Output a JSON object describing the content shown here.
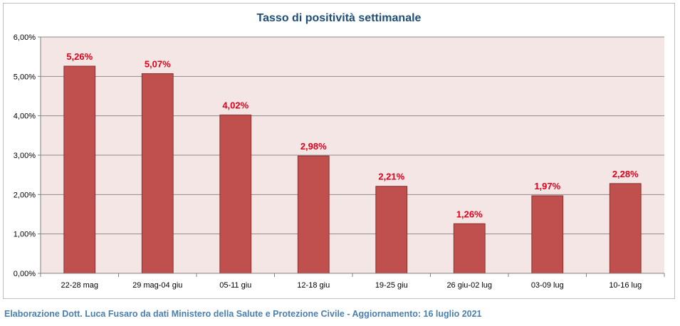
{
  "chart_data": {
    "type": "bar",
    "title": "Tasso di positività settimanale",
    "categories": [
      "22-28 mag",
      "29 mag-04 giu",
      "05-11 giu",
      "12-18 giu",
      "19-25 giu",
      "26 giu-02 lug",
      "03-09 lug",
      "10-16 lug"
    ],
    "values": [
      5.26,
      5.07,
      4.02,
      2.98,
      2.21,
      1.26,
      1.97,
      2.28
    ],
    "data_labels": [
      "5,26%",
      "5,07%",
      "4,02%",
      "2,98%",
      "2,21%",
      "1,26%",
      "1,97%",
      "2,28%"
    ],
    "y_ticks": [
      0,
      1,
      2,
      3,
      4,
      5,
      6
    ],
    "y_tick_labels": [
      "0,00%",
      "1,00%",
      "2,00%",
      "3,00%",
      "4,00%",
      "5,00%",
      "6,00%"
    ],
    "ylim": [
      0,
      6
    ],
    "grid": true,
    "legend": "none",
    "colors": {
      "bar": "#c0504d",
      "bar_edge": "#8b2f2c",
      "plot_bg": "#f5e6e6",
      "data_label": "#e0001a",
      "title": "#1f4e79",
      "grid": "#8c8c8c"
    }
  },
  "footer": {
    "text": "Elaborazione Dott. Luca Fusaro da dati Ministero della Salute e Protezione Civile - Aggiornamento: 16 luglio 2021"
  }
}
